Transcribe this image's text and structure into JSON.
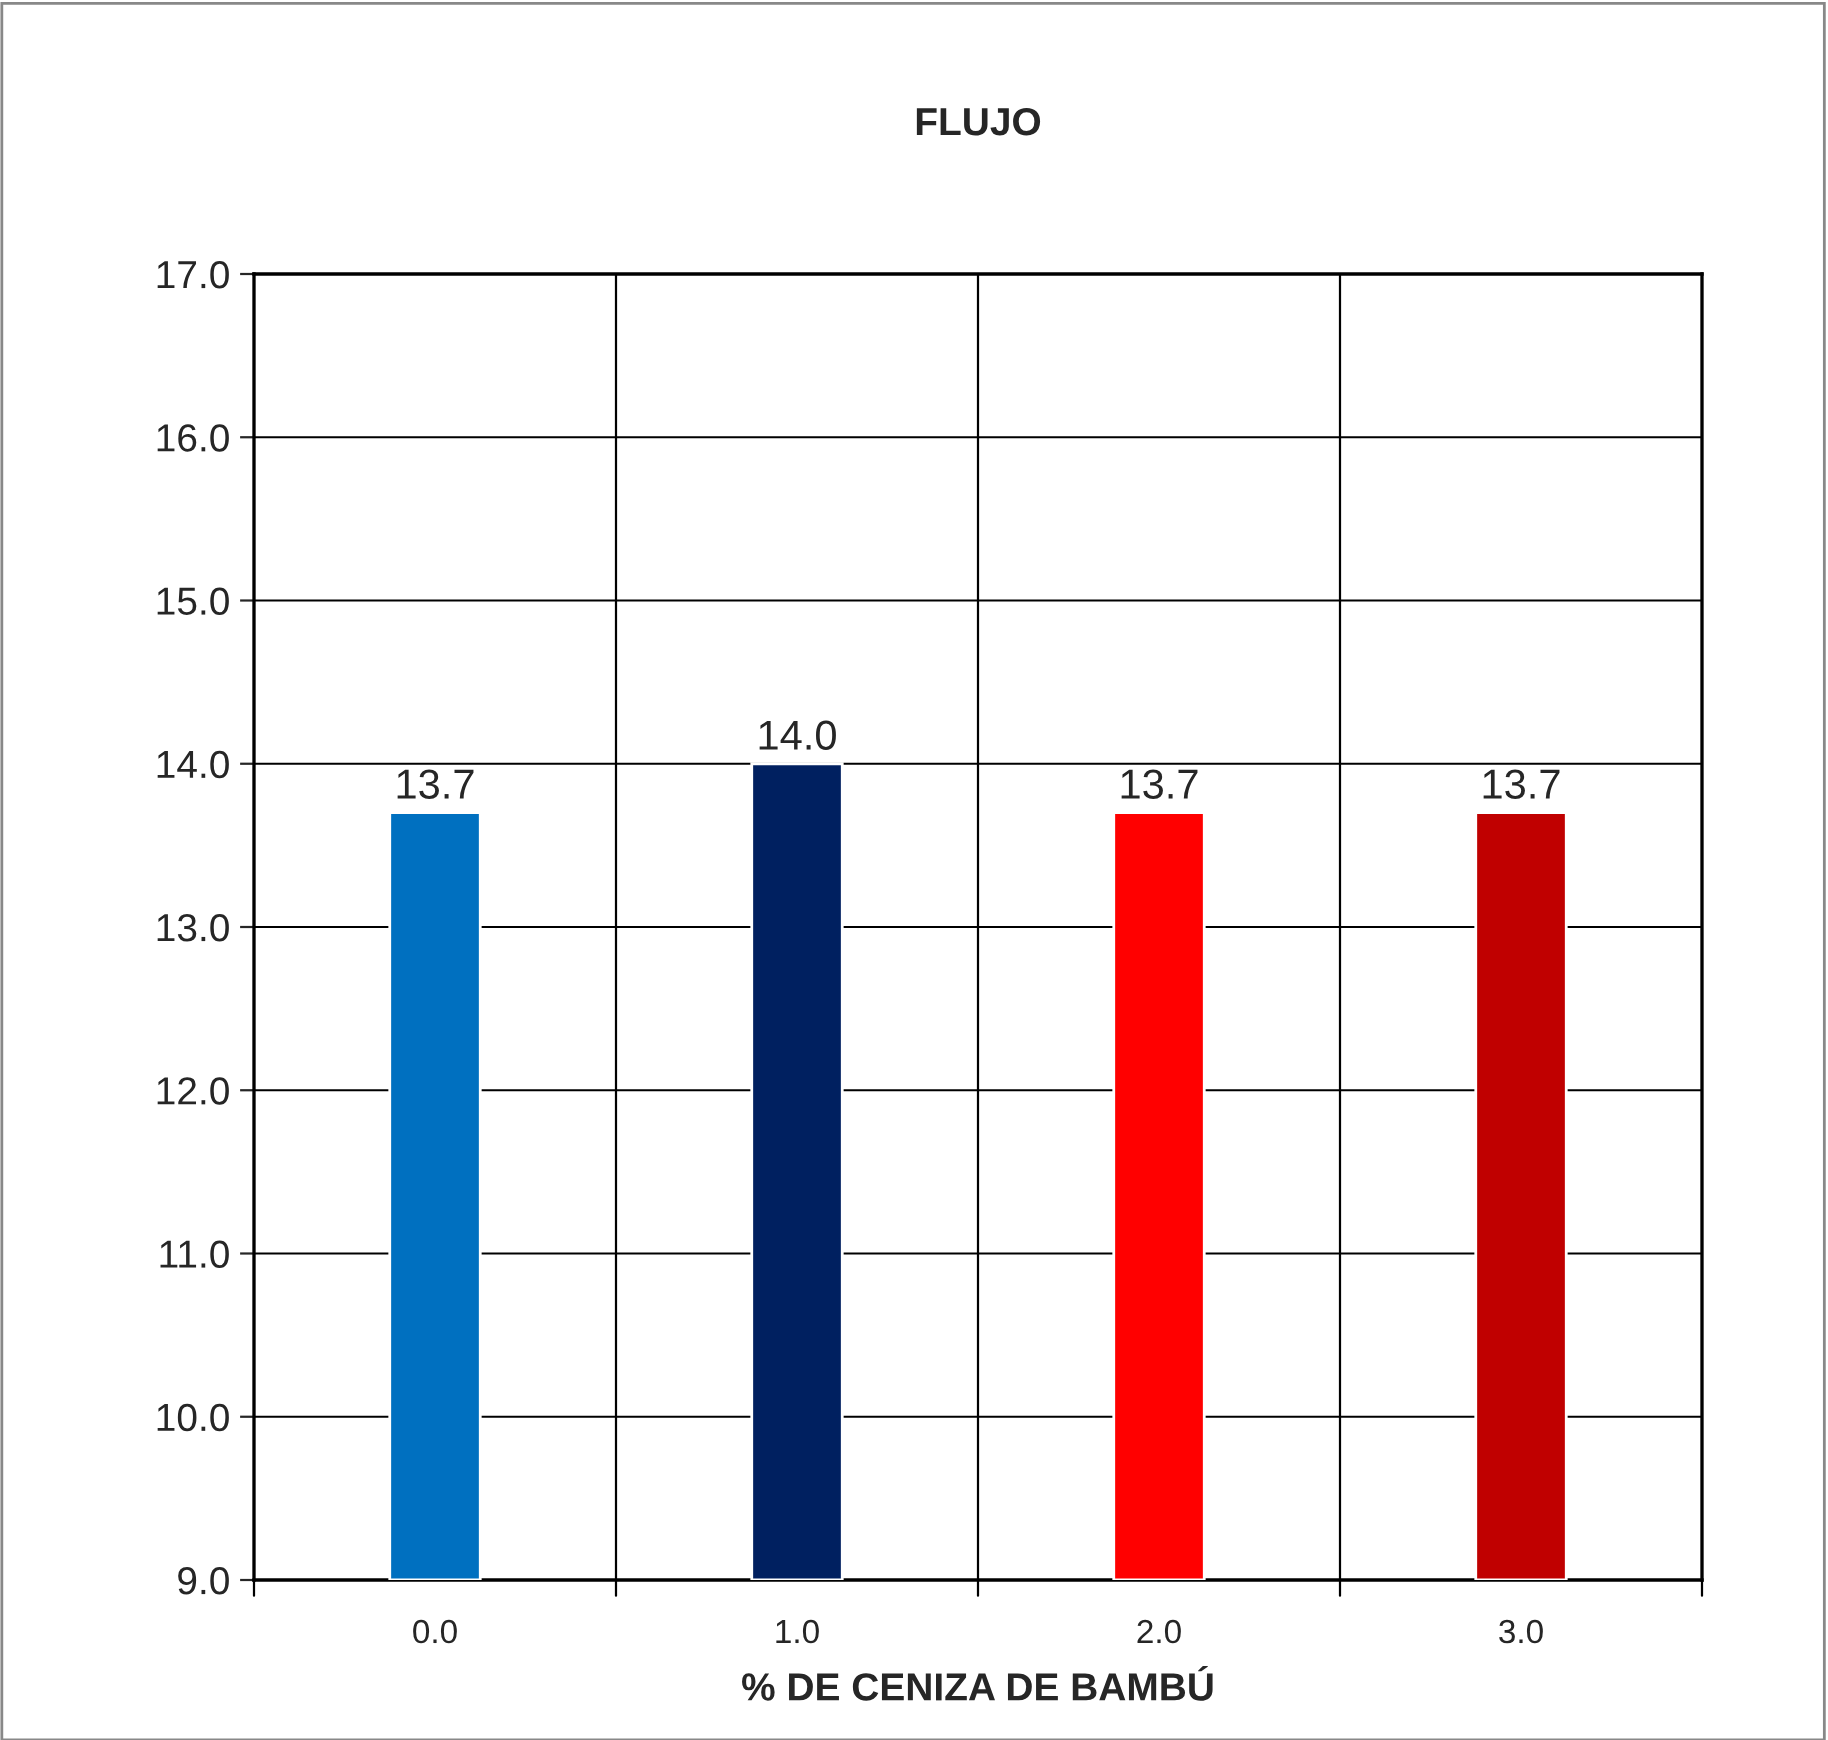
{
  "chart_data": {
    "type": "bar",
    "title": "FLUJO",
    "xlabel": "% DE CENIZA DE BAMBÚ",
    "categories": [
      "0.0",
      "1.0",
      "2.0",
      "3.0"
    ],
    "values": [
      13.7,
      14.0,
      13.7,
      13.7
    ],
    "colors": [
      "#0070c0",
      "#002060",
      "#ff0000",
      "#c00000"
    ],
    "value_labels": [
      "13.7",
      "14.0",
      "13.7",
      "13.7"
    ],
    "ylim": [
      9,
      17
    ],
    "yticks": [
      {
        "value": 9,
        "label": "9.0"
      },
      {
        "value": 10,
        "label": "10.0"
      },
      {
        "value": 11,
        "label": "11.0"
      },
      {
        "value": 12,
        "label": "12.0"
      },
      {
        "value": 13,
        "label": "13.0"
      },
      {
        "value": 14,
        "label": "14.0"
      },
      {
        "value": 15,
        "label": "15.0"
      },
      {
        "value": 16,
        "label": "16.0"
      },
      {
        "value": 17,
        "label": "17.0"
      }
    ],
    "grid": true
  }
}
